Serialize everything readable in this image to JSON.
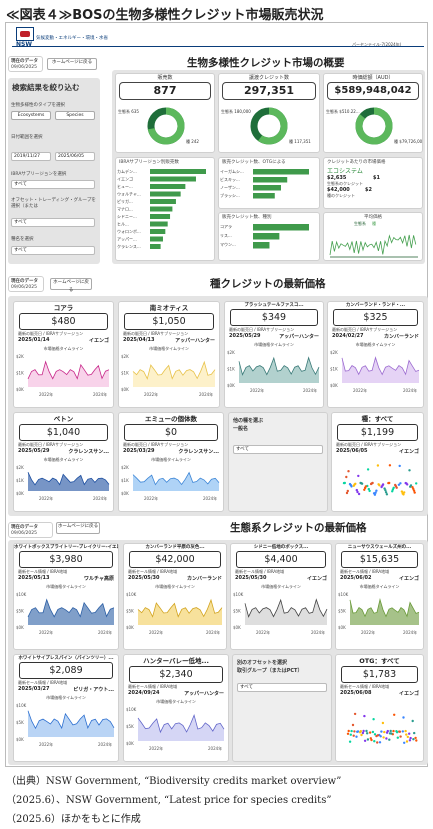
{
  "figure_title": "≪図表４≫BOSの生物多様性クレジット市場販売状況",
  "header": {
    "logo_text": "NSW",
    "department": "気候変動・エネルギー・環境・水省",
    "page_info": "パーセンテイル-7(2024年)"
  },
  "overview": {
    "title": "生物多様性クレジット市場の概要",
    "data_date_label": "現在のデータ",
    "data_date": "09/06/2025",
    "home_label": "ホームページに戻る",
    "filter_title": "検索結果を絞り込む",
    "type_label": "生物多様性のタイプを選択",
    "type_options": [
      "Ecosystems",
      "Species"
    ],
    "date_range_label": "日付範囲を選択",
    "date_from": "2019/11/27",
    "date_to": "2025/06/05",
    "ibra_label": "IBRAサブリージョンを選択",
    "ibra_value": "すべて",
    "offset_label": "オフセット・トレーディング・グループを選択（または",
    "offset_value": "すべて",
    "species_label": "種名を選択",
    "species_value": "すべて",
    "kpis": [
      {
        "label": "販売数",
        "value": "877"
      },
      {
        "label": "譲渡クレジット数",
        "value": "297,351"
      },
      {
        "label": "時価総額（AUD）",
        "value": "$589,948,042"
      }
    ],
    "donuts": [
      {
        "legend": [
          "生態系 635",
          "種 242"
        ],
        "fraction": 0.72
      },
      {
        "legend": [
          "生態系 180,000",
          "種 117,351"
        ],
        "fraction": 0.6
      },
      {
        "legend": [
          "生態系 $510.22...",
          "種 $79,726,004"
        ],
        "fraction": 0.86
      }
    ],
    "bar_panels": [
      {
        "title": "IBRAサブリージョン別販売数",
        "labels": [
          "カムデン...",
          "イエンゴ",
          "ヒュー...",
          "ウォルチャ...",
          "ピリガ...",
          "マナロ...",
          "シドニー...",
          "ヒル...",
          "ウォロンボ...",
          "アッパー...",
          "クラレンス..."
        ],
        "values": [
          95,
          78,
          60,
          52,
          44,
          38,
          34,
          30,
          26,
          22,
          18
        ]
      },
      {
        "title": "販売クレジット数、OTGによる",
        "labels": [
          "イーガムシ...",
          "ビスキッ...",
          "ノーザン...",
          "ブラッシ..."
        ],
        "values": [
          90,
          55,
          45,
          35
        ]
      },
      {
        "title": "販売クレジット数、種別",
        "labels": [
          "コアラ",
          "リス...",
          "マウン..."
        ],
        "values": [
          85,
          40,
          25
        ]
      }
    ],
    "value_panel": {
      "title": "クレジットあたりの市場価格",
      "row1": "エコシステム",
      "eco_price": "$2,635",
      "eco_sub": "生態系のクレジット",
      "eco_price2": "$1",
      "species_price": "$42,000",
      "species_sub": "種のクレジット",
      "species_price2": "$2"
    },
    "trend_panel": {
      "title": "平均価格",
      "legend": [
        "生態系",
        "種"
      ]
    }
  },
  "species": {
    "title": "種クレジットの最新価格",
    "data_date_label": "現在のデータ",
    "data_date": "09/06/2025",
    "home_label": "ホームページに戻る",
    "common_sub1": "最新の販売日 / IBRAサブリージョン",
    "timeline_label": "市場価格タイムライン",
    "cards": [
      {
        "name": "コアラ",
        "price": "$480",
        "date": "2025/01/14",
        "region": "イエンゴ",
        "color": "#c8288a",
        "fill": "#f3b6dc"
      },
      {
        "name": "南ミオティス",
        "price": "$1,050",
        "date": "2025/04/13",
        "region": "アッパーハンター",
        "color": "#e7c24a",
        "fill": "#fbe7a6"
      },
      {
        "name": "ブラッシュテールファスコ...",
        "price": "$349",
        "date": "2025/05/29",
        "region": "アッパーハンター",
        "color": "#3a7a78",
        "fill": "#7fb3ae"
      },
      {
        "name": "カンバーランド・ランド・...",
        "price": "$325",
        "date": "2024/02/27",
        "region": "カンバーランド",
        "color": "#9c6bd0",
        "fill": "#d3b6ef"
      },
      {
        "name": "ベトン",
        "price": "$1,040",
        "date": "2025/05/29",
        "region": "クラレンスサン...",
        "color": "#1d4fa0",
        "fill": "#1d4fa0"
      },
      {
        "name": "エミューの個体数",
        "price": "$0",
        "date": "2025/03/29",
        "region": "クラレンスサン...",
        "color": "#3d86d6",
        "fill": "#7ab6f0"
      }
    ],
    "select_panel": {
      "label": "他の種を選ぶ\n一般名",
      "value": "すべて"
    },
    "all_card": {
      "name": "種：すべて",
      "price": "$1,199",
      "date": "2025/06/05",
      "region": "イエンゴ"
    }
  },
  "eco": {
    "title": "生態系クレジットの最新価格",
    "data_date_label": "現在のデータ",
    "data_date": "09/06/2025",
    "home_label": "ホームページに戻る",
    "cards": [
      {
        "name": "ホワイトボックスブライトリー-ブレイクリー-イエロー...",
        "price": "$3,980",
        "date": "2025/05/13",
        "region": "ワルチャ高原",
        "color": "#2c5fa5",
        "fill": "#2c5fa5"
      },
      {
        "name": "カンバーランド平原の灰色...",
        "price": "$42,000",
        "date": "2025/05/30",
        "region": "カンバーランド",
        "color": "#d2a420",
        "fill": "#f1cd5a"
      },
      {
        "name": "シドニー低地のボックス...",
        "price": "$4,400",
        "date": "2025/05/30",
        "region": "イエンゴ",
        "color": "#444",
        "fill": "#c8c8c8"
      },
      {
        "name": "ニューサウスウェールズ州の...",
        "price": "$15,635",
        "date": "2025/06/02",
        "region": "イエンゴ",
        "color": "#6a9a3a",
        "fill": "#6a9a3a"
      },
      {
        "name": "ホワイトサイプレスパイン（パインツリー）...",
        "price": "$2,089",
        "date": "2025/03/27",
        "region": "ピリガ・アウト...",
        "color": "#2c6fd0",
        "fill": "#8ab8ef"
      },
      {
        "name": "ハンターバレー低地...",
        "price": "$2,340",
        "date": "2024/09/24",
        "region": "アッパーハンター",
        "color": "#6266c9",
        "fill": "#b9bbef"
      }
    ],
    "date_label": "最新セール情報 / IBRA地域",
    "select_panel": {
      "label": "別のオフセットを選択\n取引グループ（またはPCT）",
      "value": "すべて"
    },
    "all_card": {
      "name": "OTG：すべて",
      "price": "$1,783",
      "date": "2025/06/08",
      "region": "イエンゴ"
    }
  },
  "axis": {
    "y_species": [
      "$2K",
      "$1K",
      "$0K"
    ],
    "y_eco": [
      "$10K",
      "$5K",
      "$0K"
    ],
    "x": [
      "2022年",
      "2024年"
    ]
  },
  "caption": {
    "line1": "（出典）NSW Government, “Biodiversity credits market overview”",
    "line2": "（2025.6）、NSW Government, “Latest price for species credits”",
    "line3": "（2025.6）ほかをもとに作成"
  }
}
